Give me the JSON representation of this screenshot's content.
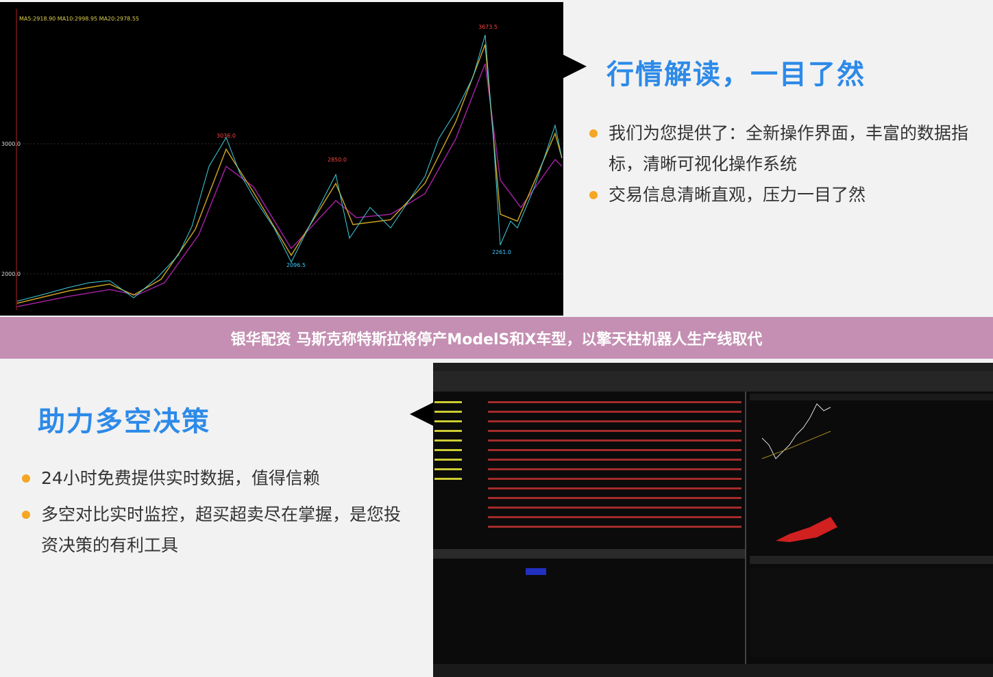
{
  "top": {
    "heading": "行情解读，一目了然",
    "bullets": [
      "我们为您提供了：全新操作界面，丰富的数据指标，清晰可视化操作系统",
      "交易信息清晰直观，压力一目了然"
    ],
    "chart_header": "MA5:2918.90  MA10:2998.95  MA20:2978.55",
    "chart_labels": [
      "3673.5",
      "3036.0",
      "2850.0",
      "2096.5",
      "2261.0",
      "3000.0",
      "2000.0"
    ]
  },
  "banner": {
    "title": "银华配资 马斯克称特斯拉将停产ModelS和X车型，以擎天柱机器人生产线取代"
  },
  "bottom": {
    "heading": "助力多空决策",
    "bullets": [
      "24小时免费提供实时数据，值得信赖",
      "多空对比实时监控，超买超卖尽在掌握，是您投资决策的有利工具"
    ]
  }
}
